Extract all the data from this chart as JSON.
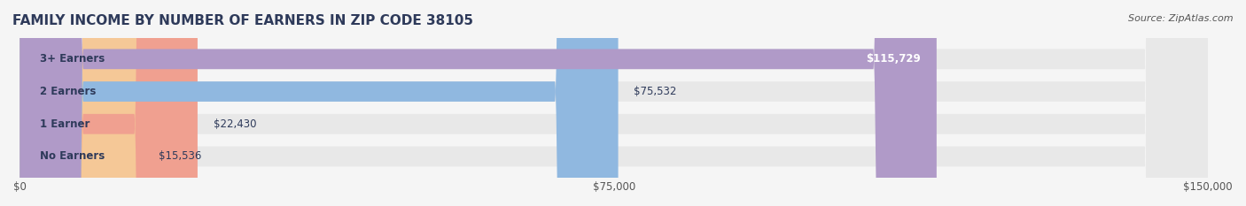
{
  "title": "FAMILY INCOME BY NUMBER OF EARNERS IN ZIP CODE 38105",
  "source": "Source: ZipAtlas.com",
  "categories": [
    "No Earners",
    "1 Earner",
    "2 Earners",
    "3+ Earners"
  ],
  "values": [
    15536,
    22430,
    75532,
    115729
  ],
  "bar_colors": [
    "#f5c897",
    "#f0a090",
    "#90b8e0",
    "#b09ac8"
  ],
  "bar_bg_color": "#e8e8e8",
  "value_labels": [
    "$15,536",
    "$22,430",
    "$75,532",
    "$115,729"
  ],
  "xlim": [
    0,
    150000
  ],
  "xticks": [
    0,
    75000,
    150000
  ],
  "xtick_labels": [
    "$0",
    "$75,000",
    "$150,000"
  ],
  "title_color": "#2e3a5a",
  "title_fontsize": 11,
  "label_fontsize": 8.5,
  "value_fontsize": 8.5,
  "source_fontsize": 8,
  "bar_height": 0.62,
  "background_color": "#f5f5f5"
}
